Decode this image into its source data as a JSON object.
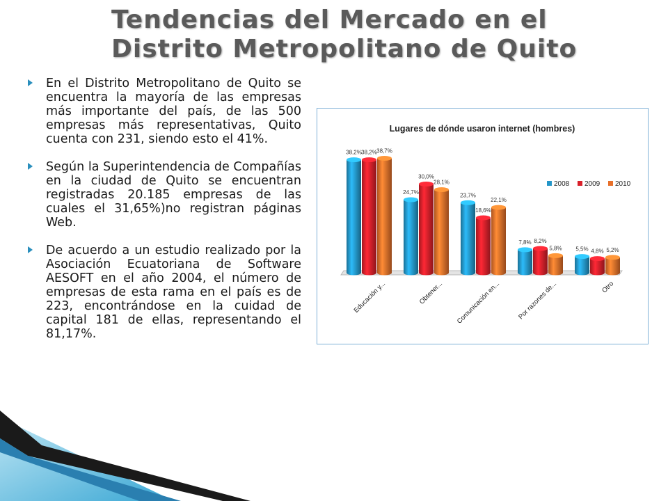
{
  "slide": {
    "title_line1": "Tendencias del Mercado en el",
    "title_line2": "Distrito Metropolitano de Quito",
    "bullets": [
      "En el Distrito Metropolitano de Quito se encuentra la mayoría de las empresas más importante del país, de las 500 empresas más representativas, Quito cuenta con 231, siendo esto el 41%.",
      "Según la Superintendencia de Compañías en la ciudad de Quito se encuentran registradas 20.185 empresas de las cuales el 31,65%)no registran páginas Web.",
      "De acuerdo a un estudio realizado por la Asociación Ecuatoriana de Software AESOFT en el año 2004, el número de empresas de esta rama en el país es de 223, encontrándose en la cuidad de capital 181 de ellas, representando el 81,17%."
    ]
  },
  "colors": {
    "2008": "#2496c8",
    "2009": "#d9202a",
    "2010": "#e8702a"
  },
  "chart_data": {
    "type": "bar",
    "title": "Lugares de dónde usaron internet (hombres)",
    "categories": [
      "Educación y...",
      "Obtener...",
      "Comunicación en...",
      "Por razones de...",
      "Otro"
    ],
    "series": [
      {
        "name": "2008",
        "values": [
          38.2,
          24.7,
          23.7,
          7.8,
          5.5
        ],
        "labels": [
          "38,2%",
          "24,7%",
          "23,7%",
          "7,8%",
          "5,5%"
        ]
      },
      {
        "name": "2009",
        "values": [
          38.2,
          30.0,
          18.6,
          8.2,
          4.8
        ],
        "labels": [
          "38,2%",
          "30,0%",
          "18,6%",
          "8,2%",
          "4,8%"
        ]
      },
      {
        "name": "2010",
        "values": [
          38.7,
          28.1,
          22.1,
          5.8,
          5.2
        ],
        "labels": [
          "38,7%",
          "28,1%",
          "22,1%",
          "5,8%",
          "5,2%"
        ]
      }
    ],
    "ylim": [
      0,
      40
    ],
    "legend": "top-right",
    "style": "3d-cylinder"
  }
}
